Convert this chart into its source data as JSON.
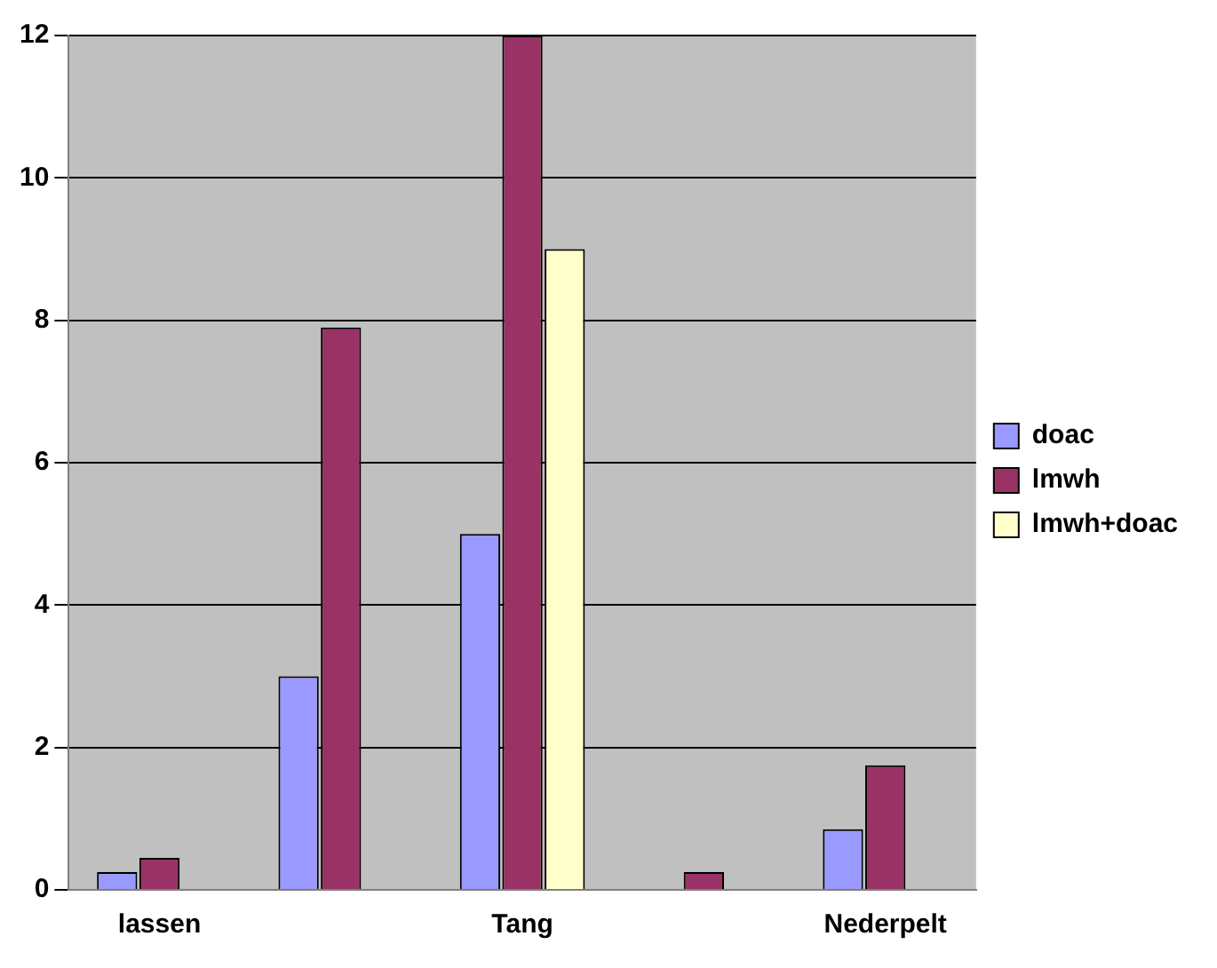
{
  "chart_data": {
    "type": "bar",
    "categories": [
      "lassen",
      null,
      "Tang",
      null,
      "Nederpelt"
    ],
    "series": [
      {
        "name": "doac",
        "color": "#9999ff",
        "values": [
          0.25,
          3,
          5,
          0,
          0.85
        ]
      },
      {
        "name": "lmwh",
        "color": "#993366",
        "values": [
          0.45,
          7.9,
          12,
          0.25,
          1.75
        ]
      },
      {
        "name": "lmwh+doac",
        "color": "#ffffcc",
        "values": [
          null,
          null,
          9,
          null,
          null
        ]
      }
    ],
    "ylim": [
      0,
      12
    ],
    "yticks": [
      0,
      2,
      4,
      6,
      8,
      10,
      12
    ],
    "grid": "y",
    "legend": "right"
  }
}
